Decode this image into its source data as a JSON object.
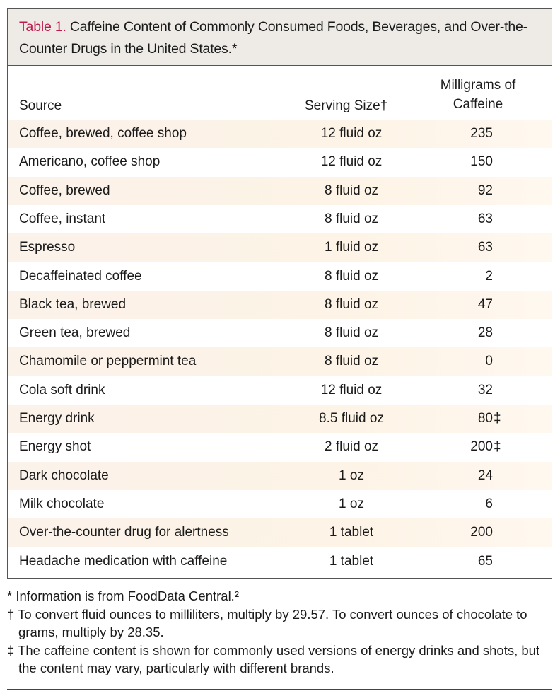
{
  "title": {
    "label": "Table 1.",
    "text": " Caffeine Content of Commonly Consumed Foods, Beverages, and Over-the-Counter Drugs in the United States.*"
  },
  "columns": {
    "source": "Source",
    "serving": "Serving Size†",
    "mg_line1": "Milligrams of",
    "mg_line2": "Caffeine"
  },
  "rows": [
    {
      "source": "Coffee, brewed, coffee shop",
      "serving": "12 fluid oz",
      "mg": "235",
      "mark": ""
    },
    {
      "source": "Americano, coffee shop",
      "serving": "12 fluid oz",
      "mg": "150",
      "mark": ""
    },
    {
      "source": "Coffee, brewed",
      "serving": "8 fluid oz",
      "mg": "92",
      "mark": ""
    },
    {
      "source": "Coffee, instant",
      "serving": "8 fluid oz",
      "mg": "63",
      "mark": ""
    },
    {
      "source": "Espresso",
      "serving": "1 fluid oz",
      "mg": "63",
      "mark": ""
    },
    {
      "source": "Decaffeinated coffee",
      "serving": "8 fluid oz",
      "mg": "2",
      "mark": ""
    },
    {
      "source": "Black tea, brewed",
      "serving": "8 fluid oz",
      "mg": "47",
      "mark": ""
    },
    {
      "source": "Green tea, brewed",
      "serving": "8 fluid oz",
      "mg": "28",
      "mark": ""
    },
    {
      "source": "Chamomile or peppermint tea",
      "serving": "8 fluid oz",
      "mg": "0",
      "mark": ""
    },
    {
      "source": "Cola soft drink",
      "serving": "12 fluid oz",
      "mg": "32",
      "mark": ""
    },
    {
      "source": "Energy drink",
      "serving": "8.5 fluid oz",
      "mg": "80",
      "mark": "‡"
    },
    {
      "source": "Energy shot",
      "serving": "2 fluid oz",
      "mg": "200",
      "mark": "‡"
    },
    {
      "source": "Dark chocolate",
      "serving": "1 oz",
      "mg": "24",
      "mark": ""
    },
    {
      "source": "Milk chocolate",
      "serving": "1 oz",
      "mg": "6",
      "mark": ""
    },
    {
      "source": "Over-the-counter drug for alertness",
      "serving": "1 tablet",
      "mg": "200",
      "mark": ""
    },
    {
      "source": "Headache medication with caffeine",
      "serving": "1 tablet",
      "mg": "65",
      "mark": ""
    }
  ],
  "footnotes": [
    "* Information is from FoodData Central.²",
    "† To convert fluid ounces to milliliters, multiply by 29.57. To convert ounces of chocolate to grams, multiply by 28.35.",
    "‡ The caffeine content is shown for commonly used versions of energy drinks and shots, but the content may vary, particularly with different brands."
  ],
  "colors": {
    "label": "#c0194a",
    "title_bg": "#eeebe7",
    "stripe": "#fdf3e6"
  }
}
